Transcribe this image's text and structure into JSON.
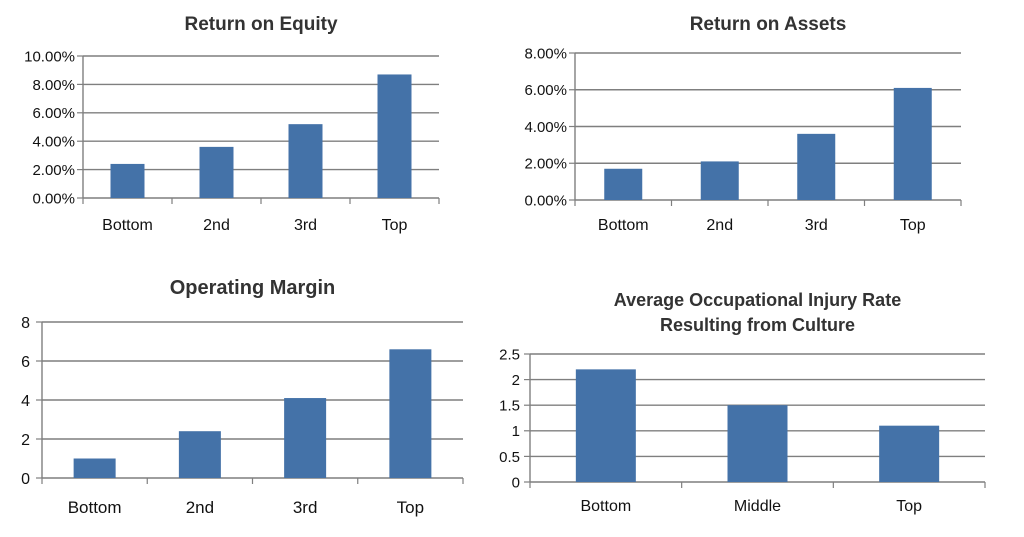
{
  "chart_data": [
    {
      "type": "bar",
      "title": [
        "Return on Equity"
      ],
      "categories": [
        "Bottom",
        "2nd",
        "3rd",
        "Top"
      ],
      "values": [
        2.4,
        3.6,
        5.2,
        8.7
      ],
      "ylim": [
        0,
        10
      ],
      "yticks": [
        0,
        2,
        4,
        6,
        8,
        10
      ],
      "ytick_labels": [
        "0.00%",
        "2.00%",
        "4.00%",
        "6.00%",
        "8.00%",
        "10.00%"
      ],
      "y_unit": "%",
      "grid": true,
      "color": "#4472A8"
    },
    {
      "type": "bar",
      "title": [
        "Return on Assets"
      ],
      "categories": [
        "Bottom",
        "2nd",
        "3rd",
        "Top"
      ],
      "values": [
        1.7,
        2.1,
        3.6,
        6.1
      ],
      "ylim": [
        0,
        8
      ],
      "yticks": [
        0,
        2,
        4,
        6,
        8
      ],
      "ytick_labels": [
        "0.00%",
        "2.00%",
        "4.00%",
        "6.00%",
        "8.00%"
      ],
      "y_unit": "%",
      "grid": true,
      "color": "#4472A8"
    },
    {
      "type": "bar",
      "title": [
        "Operating Margin"
      ],
      "categories": [
        "Bottom",
        "2nd",
        "3rd",
        "Top"
      ],
      "values": [
        1.0,
        2.4,
        4.1,
        6.6
      ],
      "ylim": [
        0,
        8
      ],
      "yticks": [
        0,
        2,
        4,
        6,
        8
      ],
      "ytick_labels": [
        "0",
        "2",
        "4",
        "6",
        "8"
      ],
      "grid": true,
      "color": "#4472A8"
    },
    {
      "type": "bar",
      "title": [
        "Average Occupational Injury Rate",
        "Resulting from Culture"
      ],
      "categories": [
        "Bottom",
        "Middle",
        "Top"
      ],
      "values": [
        2.2,
        1.5,
        1.1
      ],
      "ylim": [
        0,
        2.5
      ],
      "yticks": [
        0,
        0.5,
        1,
        1.5,
        2,
        2.5
      ],
      "ytick_labels": [
        "0",
        "0.5",
        "1",
        "1.5",
        "2",
        "2.5"
      ],
      "grid": true,
      "color": "#4472A8"
    }
  ]
}
